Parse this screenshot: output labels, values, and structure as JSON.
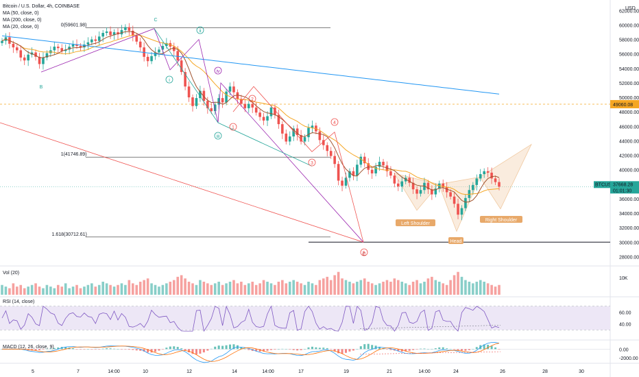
{
  "header": {
    "title": "Bitcoin / U.S. Dollar, 4h, COINBASE",
    "ma_lines": [
      "MA (50, close, 0)",
      "MA (200, close, 0)",
      "MA (20, close, 0)"
    ]
  },
  "colors": {
    "up": "#26a69a",
    "down": "#ef5350",
    "ma50": "#f5a623",
    "ma200": "#2196f3",
    "ma20": "#a0522d",
    "rsi": "#7e57c2",
    "rsi_band": "#ede7f6",
    "pattern": "#f0c9a0"
  },
  "price_axis": {
    "currency": "USD",
    "ticks": [
      "62000.00",
      "60000.00",
      "58000.00",
      "56000.00",
      "54000.00",
      "52000.00",
      "50000.00",
      "48000.00",
      "46000.00",
      "44000.00",
      "42000.00",
      "40000.00",
      "38000.00",
      "36000.00",
      "34000.00",
      "32000.00",
      "30000.00",
      "28000.00"
    ],
    "alert_value": "49060.08",
    "symbol": "BTCUSD",
    "last_price": "37668.28",
    "countdown": "01:01:30"
  },
  "time_axis": [
    "5",
    "7",
    "14:00",
    "10",
    "12",
    "14",
    "14:00",
    "17",
    "19",
    "21",
    "14:00",
    "24",
    "26",
    "28",
    "30"
  ],
  "fib": [
    {
      "label": "0(59601.98)",
      "price": 59601.98
    },
    {
      "label": "1(41746.89)",
      "price": 41746.89
    },
    {
      "label": "1.618(30712.61)",
      "price": 30712.61
    }
  ],
  "support_price": 30000,
  "patterns": {
    "left": "Left Shoulder",
    "head": "Head",
    "right": "Right Shoulder"
  },
  "waves": {
    "B": "B",
    "C": "C",
    "i": "i",
    "ii": "ii",
    "iii": "iii",
    "iv": "iv",
    "n1": "1",
    "n2": "2",
    "n3": "3",
    "n4": "4",
    "n5": "5"
  },
  "volume": {
    "label": "Vol (20)",
    "tick": "10K"
  },
  "rsi": {
    "label": "RSI (14, close)",
    "ticks": [
      "60.00",
      "40.00"
    ]
  },
  "macd": {
    "label": "MACD (12, 26, close, 9)",
    "ticks": [
      "0.00",
      "-2000.00"
    ]
  },
  "chart_data": {
    "type": "candlestick",
    "title": "Bitcoin / U.S. Dollar, 4h, COINBASE",
    "ylim": [
      27000,
      62500
    ],
    "close": [
      57800,
      58300,
      57400,
      56900,
      56500,
      55500,
      55100,
      55900,
      56200,
      55600,
      54600,
      55500,
      56100,
      56500,
      57000,
      56800,
      56400,
      56600,
      57000,
      57300,
      57100,
      56900,
      57300,
      57600,
      58000,
      57800,
      58400,
      58900,
      59100,
      58600,
      59000,
      58700,
      59300,
      59700,
      59200,
      58500,
      57700,
      56900,
      55600,
      55000,
      55700,
      56200,
      56600,
      57100,
      57500,
      57000,
      56400,
      55100,
      53500,
      51500,
      50000,
      48800,
      49900,
      50900,
      49500,
      48500,
      48100,
      49000,
      49900,
      49300,
      50800,
      51500,
      50700,
      49800,
      49100,
      48500,
      49100,
      48600,
      47900,
      47300,
      46800,
      47400,
      48600,
      47600,
      46300,
      45000,
      43900,
      44600,
      45700,
      44800,
      43900,
      44500,
      45800,
      46100,
      45300,
      44100,
      43400,
      42600,
      41900,
      40800,
      38500,
      37800,
      38900,
      39800,
      39200,
      40700,
      41800,
      40900,
      40000,
      39500,
      40400,
      41100,
      40600,
      39800,
      39200,
      38100,
      37700,
      38400,
      38900,
      38200,
      37300,
      36700,
      37200,
      38200,
      37300,
      36600,
      37400,
      38100,
      37600,
      36900,
      36300,
      35300,
      33800,
      34700,
      36100,
      37200,
      37900,
      38800,
      39400,
      39800,
      39600,
      38800,
      38300,
      37668
    ],
    "series": [
      {
        "name": "MA (50, close, 0)",
        "kind": "ma50"
      },
      {
        "name": "MA (200, close, 0)",
        "kind": "ma200"
      },
      {
        "name": "MA (20, close, 0)",
        "kind": "ma20"
      }
    ],
    "volume": [
      6,
      5,
      4,
      7,
      5,
      6,
      4,
      5,
      6,
      7,
      5,
      4,
      6,
      5,
      4,
      6,
      5,
      7,
      4,
      5,
      6,
      4,
      5,
      6,
      7,
      5,
      6,
      8,
      7,
      6,
      5,
      6,
      7,
      6,
      9,
      7,
      6,
      8,
      9,
      10,
      7,
      6,
      5,
      6,
      7,
      8,
      9,
      11,
      12,
      10,
      8,
      7,
      6,
      9,
      8,
      7,
      6,
      7,
      8,
      6,
      7,
      8,
      9,
      7,
      8,
      6,
      7,
      8,
      6,
      7,
      9,
      8,
      7,
      6,
      8,
      9,
      7,
      8,
      9,
      8,
      7,
      6,
      8,
      7,
      6,
      9,
      10,
      11,
      9,
      12,
      14,
      10,
      9,
      8,
      7,
      8,
      9,
      10,
      8,
      7,
      6,
      7,
      8,
      9,
      8,
      10,
      9,
      8,
      7,
      6,
      8,
      9,
      7,
      8,
      10,
      11,
      9,
      8,
      7,
      6,
      9,
      12,
      14,
      11,
      9,
      8,
      7,
      8,
      9,
      8,
      7,
      6,
      5,
      6
    ],
    "rsi_ylim": [
      20,
      80
    ],
    "macd_ylim": [
      -3000,
      1500
    ]
  }
}
